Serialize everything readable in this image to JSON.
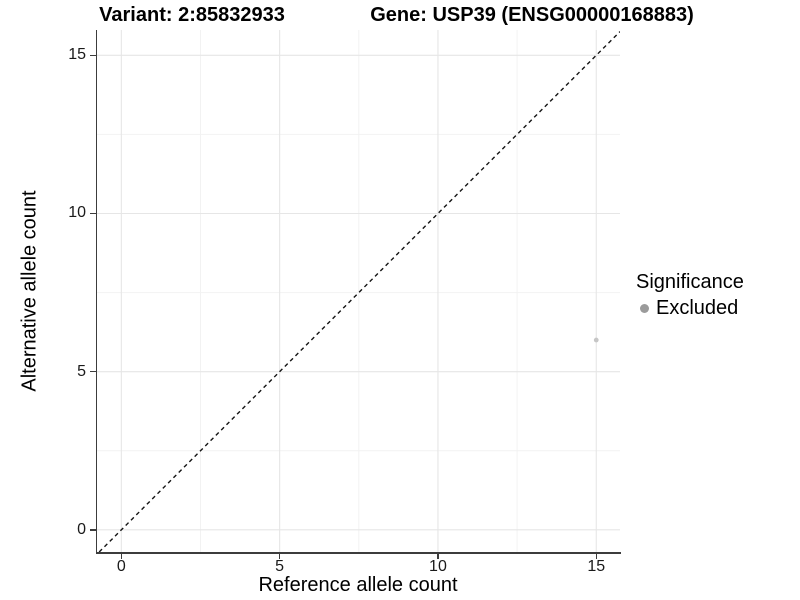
{
  "chart_data": {
    "type": "scatter",
    "title_left": "Variant: 2:85832933",
    "title_right": "Gene: USP39 (ENSG00000168883)",
    "xlabel": "Reference allele count",
    "ylabel": "Alternative allele count",
    "xlim": [
      -0.8,
      15.75
    ],
    "ylim": [
      -0.7,
      15.8
    ],
    "x_ticks": [
      0,
      5,
      10,
      15
    ],
    "y_ticks": [
      0,
      5,
      10,
      15
    ],
    "x_minor_gridlines": [
      2.5,
      7.5,
      12.5
    ],
    "y_minor_gridlines": [
      2.5,
      7.5,
      12.5
    ],
    "grid": "major+minor",
    "identity_line": {
      "type": "y=x",
      "style": "dashed",
      "color": "#141414"
    },
    "points": [
      {
        "x": 15,
        "y": 6,
        "series": "Excluded"
      }
    ],
    "legend": {
      "title": "Significance",
      "position": "right",
      "entries": [
        {
          "label": "Excluded",
          "marker": "circle",
          "color": "#9b9b9b"
        }
      ]
    },
    "colors": {
      "background": "#ffffff",
      "point": "#c6c6c6",
      "legend_marker": "#9b9b9b",
      "grid_major": "#e6e6e6",
      "grid_minor": "#f2f2f2",
      "axis": "#3c3c3c",
      "tick_text": "#1a1a1a",
      "text": "#000000"
    }
  }
}
